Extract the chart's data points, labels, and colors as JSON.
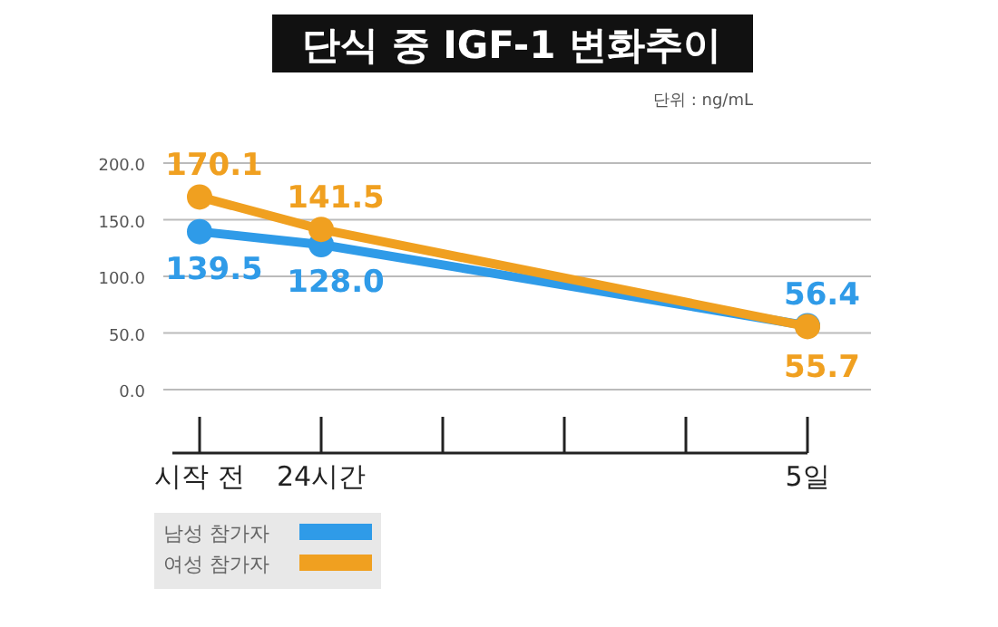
{
  "chart_data": {
    "type": "line",
    "title": "단식 중 IGF-1 변화추이",
    "annotations": [
      "단위 : ng/mL"
    ],
    "categories": [
      "시작 전",
      "24시간",
      null,
      null,
      null,
      "5일"
    ],
    "series": [
      {
        "name": "남성 참가자",
        "color": "#2f9be8",
        "values": [
          139.5,
          128.0,
          null,
          null,
          null,
          56.4
        ],
        "value_labels": [
          "139.5",
          "128.0",
          null,
          null,
          null,
          "56.4"
        ]
      },
      {
        "name": "여성 참가자",
        "color": "#f0a020",
        "values": [
          170.1,
          141.5,
          null,
          null,
          null,
          55.7
        ],
        "value_labels": [
          "170.1",
          "141.5",
          null,
          null,
          null,
          "55.7"
        ]
      }
    ],
    "ylim": [
      0,
      200
    ],
    "yticks": [
      {
        "value": 0,
        "label": "0.0"
      },
      {
        "value": 50,
        "label": "50.0"
      },
      {
        "value": 100,
        "label": "100.0"
      },
      {
        "value": 150,
        "label": "150.0"
      },
      {
        "value": 200,
        "label": "200.0"
      }
    ],
    "grid": "y",
    "legend": "bottom left",
    "marker": "circle"
  }
}
